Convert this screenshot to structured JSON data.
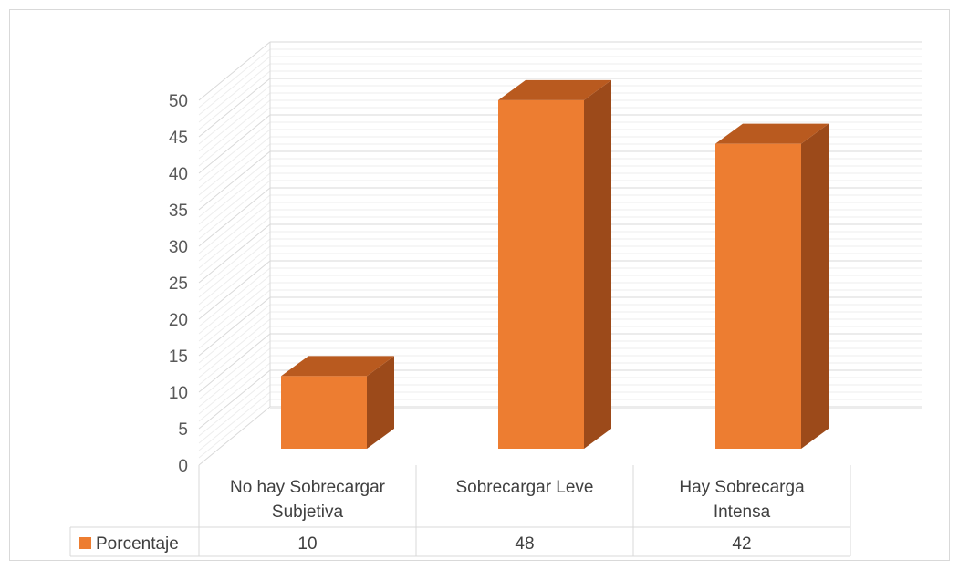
{
  "chart_data": {
    "type": "bar",
    "style": "3d-column",
    "categories": [
      [
        "No hay Sobrecargar",
        "Subjetiva"
      ],
      [
        "Sobrecargar Leve"
      ],
      [
        "Hay Sobrecarga",
        "Intensa"
      ]
    ],
    "series": [
      {
        "name": "Porcentaje",
        "values": [
          10,
          48,
          42
        ]
      }
    ],
    "ylim": [
      0,
      50
    ],
    "yticks": [
      0,
      5,
      10,
      15,
      20,
      25,
      30,
      35,
      40,
      45,
      50
    ],
    "grid": true,
    "legend": "data-table",
    "colors": {
      "front": "#ed7d31",
      "top": "#b95a1f",
      "side": "#9c4a1a",
      "grid": "#d9d9d9"
    }
  }
}
